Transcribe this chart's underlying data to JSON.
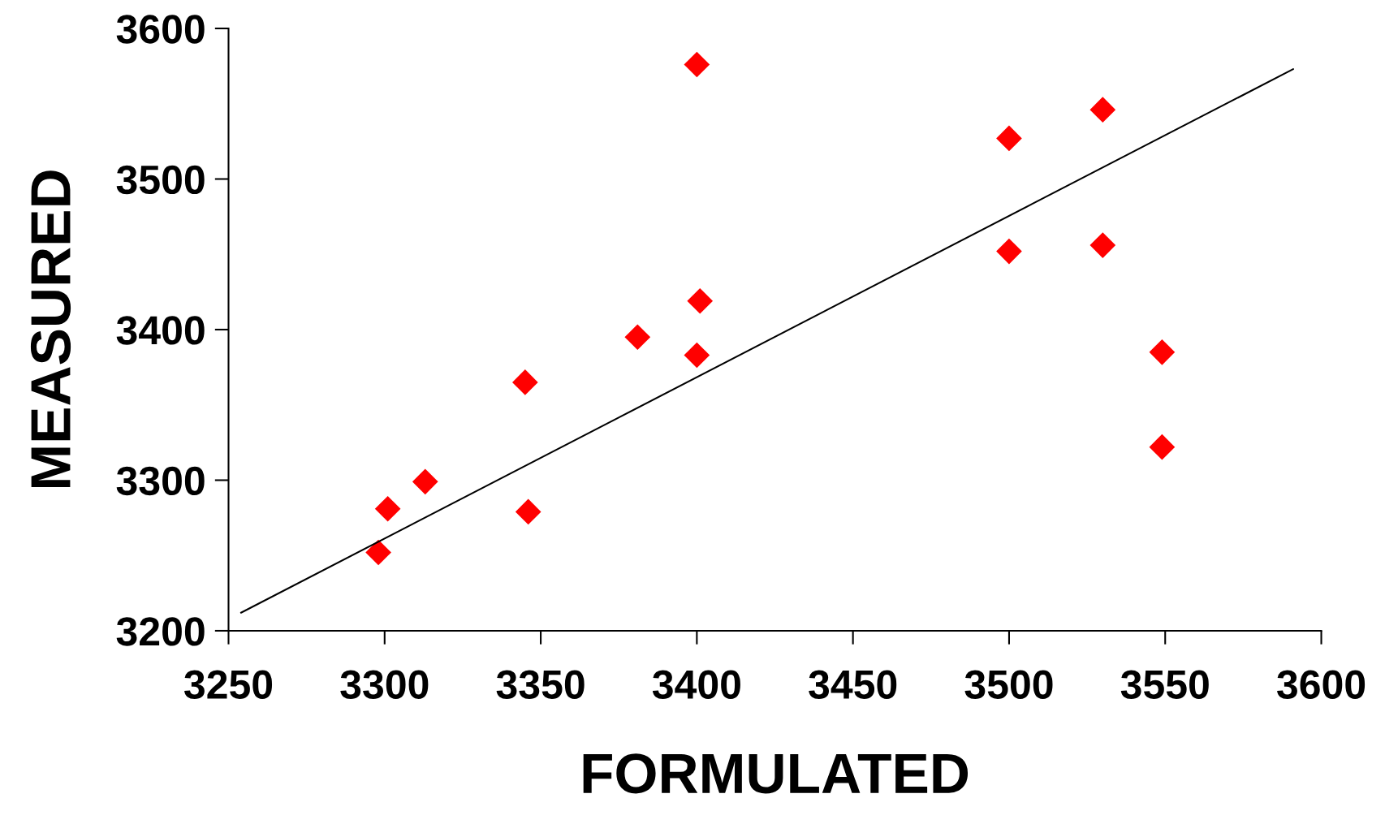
{
  "chart_data": {
    "type": "scatter",
    "xlabel": "FORMULATED",
    "ylabel": "MEASURED",
    "xlim": [
      3250,
      3600
    ],
    "xticks": [
      3250,
      3300,
      3350,
      3400,
      3450,
      3500,
      3550,
      3600
    ],
    "ylim": [
      3200,
      3600
    ],
    "yticks": [
      3200,
      3300,
      3400,
      3500,
      3600
    ],
    "grid": false,
    "legend": false,
    "marker": "diamond",
    "series": [
      {
        "color": "#ff0000",
        "x": [
          3298,
          3301,
          3313,
          3345,
          3346,
          3381,
          3400,
          3400,
          3401,
          3500,
          3500,
          3530,
          3530,
          3549,
          3549
        ],
        "values": [
          3252,
          3281,
          3299,
          3365,
          3279,
          3395,
          3576,
          3383,
          3419,
          3527,
          3452,
          3546,
          3456,
          3385,
          3322
        ]
      },
      {
        "type": "line",
        "color": "#000000",
        "marker": "none",
        "x": [
          3254,
          3591
        ],
        "values": [
          3212,
          3573
        ]
      }
    ]
  }
}
